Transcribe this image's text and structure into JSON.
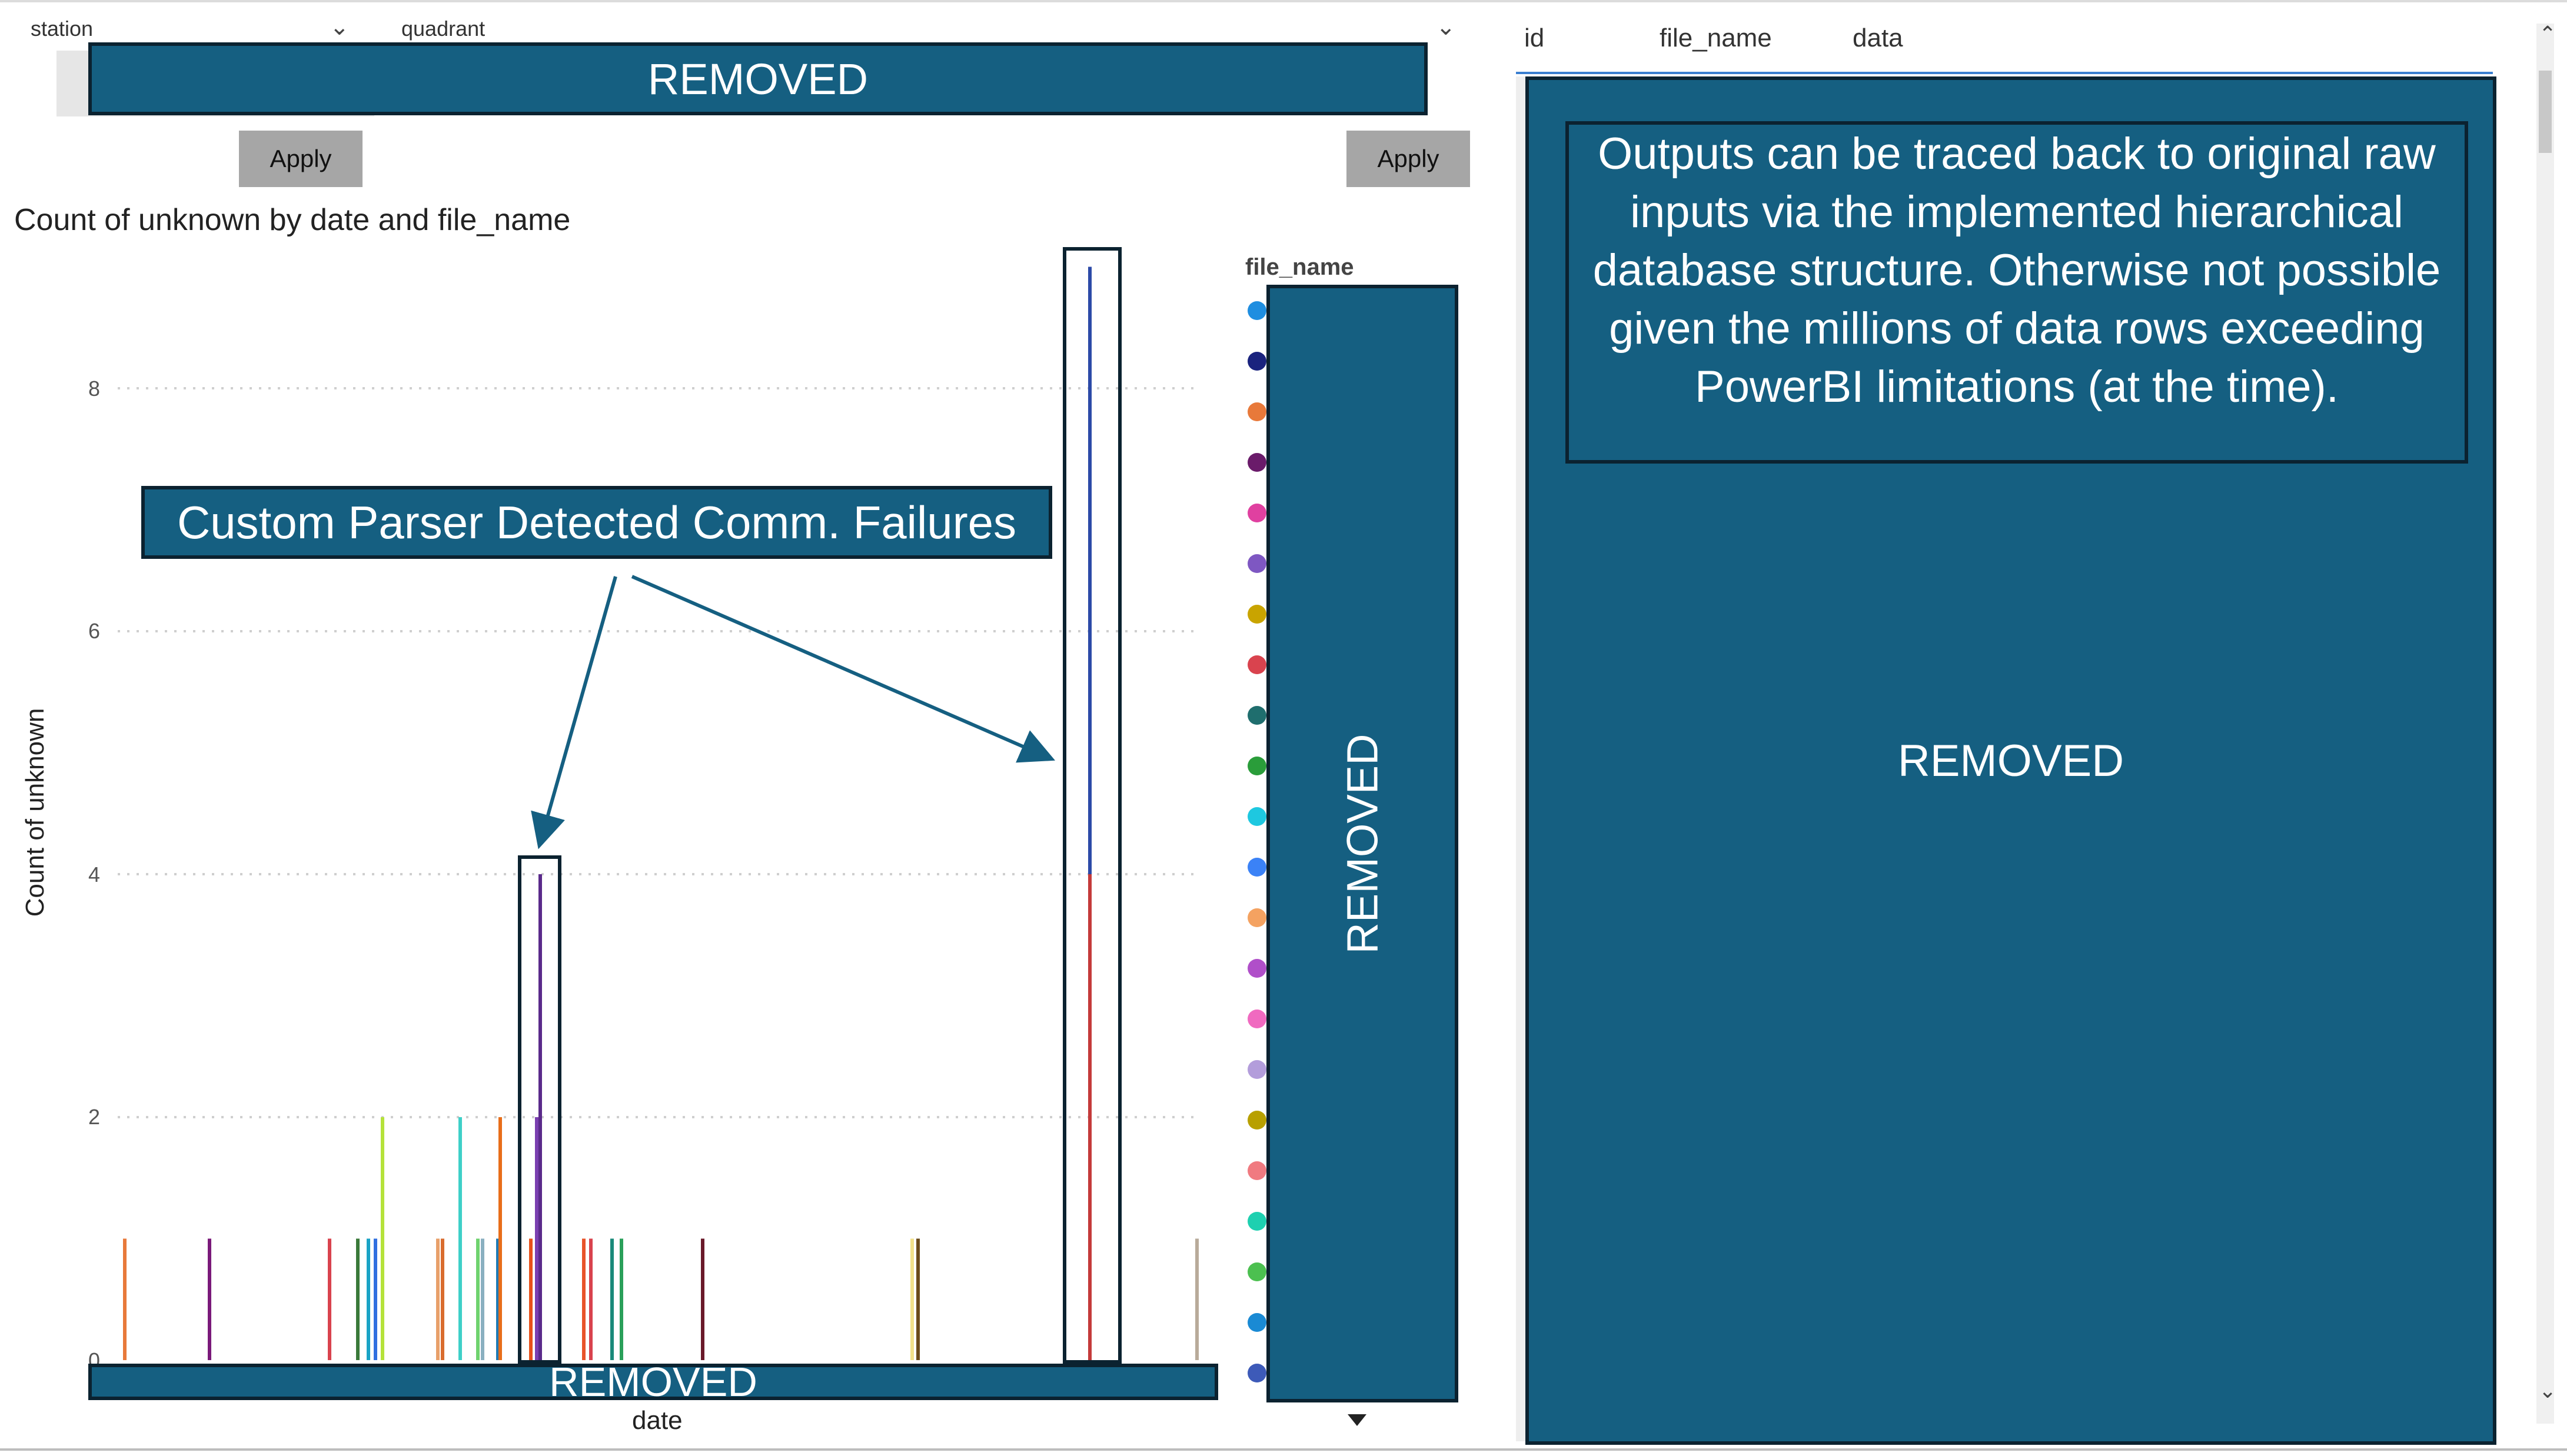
{
  "slicers": {
    "station": {
      "label": "station",
      "apply": "Apply"
    },
    "quadrant": {
      "label": "quadrant",
      "apply": "Apply"
    },
    "redacted_label": "REMOVED"
  },
  "chart": {
    "title": "Count of unknown by date and file_name",
    "ylabel": "Count of unknown",
    "xlabel": "date",
    "yticks": [
      "0",
      "2",
      "4",
      "6",
      "8"
    ],
    "legend_title": "file_name",
    "legend_redacted": "REMOVED",
    "x_redacted": "REMOVED",
    "annotation": "Custom Parser Detected Comm. Failures"
  },
  "chart_data": {
    "type": "bar",
    "ylabel": "Count of unknown",
    "xlabel": "date",
    "ylim": [
      0,
      9
    ],
    "values": [
      1,
      1,
      1,
      1,
      1,
      1,
      2,
      1,
      1,
      2,
      1,
      1,
      1,
      2,
      1,
      2,
      4,
      1,
      1,
      1,
      1,
      1,
      1,
      1,
      1,
      9,
      1
    ],
    "series_colors": [
      "#e8793a",
      "#7a1a7a",
      "#d9434e",
      "#3a7a3a",
      "#1aa3c6",
      "#2f6fe0",
      "#b5e23a",
      "#e8a06a",
      "#d96c2f",
      "#3ed0c8",
      "#6fd36f",
      "#8ab0c0",
      "#1f7ab5",
      "#e86e1a",
      "#e8511a",
      "#7a3fb0",
      "#5a2a8a",
      "#e8532a",
      "#d9434e",
      "#1a8a7a",
      "#2aa05a",
      "#6a1a2a",
      "#f2e08a",
      "#6a4a1a",
      "#c43a3a",
      "#2c4aa8",
      "#b8ab9a"
    ],
    "grid": "on",
    "legend": "right"
  },
  "legend_colors": [
    "#1f8ee0",
    "#1a237e",
    "#e8793a",
    "#6a1b6a",
    "#e040a0",
    "#7e57c2",
    "#c9a400",
    "#d9434e",
    "#1f6e6e",
    "#2a9d3a",
    "#1ec8e0",
    "#3b82f6",
    "#f4a261",
    "#b04fc9",
    "#f06ac0",
    "#b39ddb",
    "#b8a000",
    "#f07a80",
    "#1ed0b0",
    "#4cc050",
    "#1a8ad4",
    "#3d5ab8"
  ],
  "table": {
    "columns": [
      "id",
      "file_name",
      "data"
    ],
    "note": "Outputs can be traced back to original raw inputs via the implemented hierarchical database structure. Otherwise not possible given the millions of data rows exceeding PowerBI limitations (at the time).",
    "redacted": "REMOVED"
  }
}
